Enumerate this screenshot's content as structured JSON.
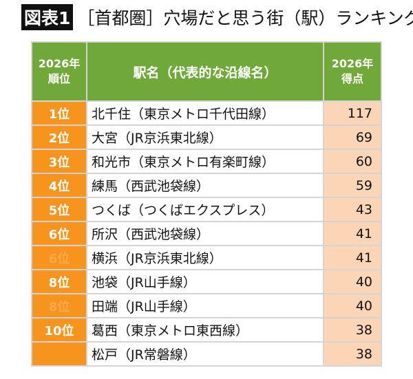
{
  "title": {
    "badge": "図表1",
    "text": "［首都圏］穴場だと思う街（駅）ランキング"
  },
  "colors": {
    "header": "#70a83a",
    "rank": "#f7941d",
    "score": "#fbd5b5"
  },
  "chart_data": {
    "type": "table",
    "columns": [
      {
        "line1": "2026年",
        "line2": "順位"
      },
      {
        "line1": "駅名（代表的な沿線名）"
      },
      {
        "line1": "2026年",
        "line2": "得点"
      }
    ],
    "rows": [
      {
        "rank": "1位",
        "station": "北千住（東京メトロ千代田線）",
        "score": 117
      },
      {
        "rank": "2位",
        "station": "大宮（JR京浜東北線）",
        "score": 69
      },
      {
        "rank": "3位",
        "station": "和光市（東京メトロ有楽町線）",
        "score": 60
      },
      {
        "rank": "4位",
        "station": "練馬（西武池袋線）",
        "score": 59
      },
      {
        "rank": "5位",
        "station": "つくば（つくばエクスプレス）",
        "score": 43
      },
      {
        "rank": "6位",
        "station": "所沢（西武池袋線）",
        "score": 41
      },
      {
        "rank": "6位",
        "station": "横浜（JR京浜東北線）",
        "score": 41,
        "tie": true
      },
      {
        "rank": "8位",
        "station": "池袋（JR山手線）",
        "score": 40
      },
      {
        "rank": "8位",
        "station": "田端（JR山手線）",
        "score": 40,
        "tie": true
      },
      {
        "rank": "10位",
        "station": "葛西（東京メトロ東西線）",
        "score": 38
      },
      {
        "rank": "",
        "station": "松戸（JR常磐線）",
        "score": 38,
        "tie": true
      }
    ]
  }
}
